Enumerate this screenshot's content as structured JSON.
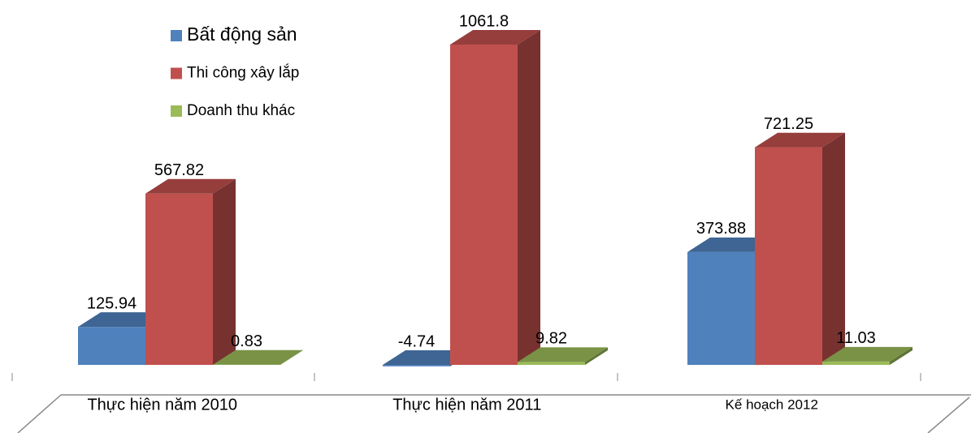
{
  "chart_data": {
    "type": "bar3d",
    "categories": [
      "Thực hiện năm 2010",
      "Thực hiện năm 2011",
      "Kế hoạch 2012"
    ],
    "series": [
      {
        "name": "Bất động sản",
        "color": "#4f81bd",
        "values": [
          125.94,
          -4.74,
          373.88
        ]
      },
      {
        "name": "Thi công xây lắp",
        "color": "#c0504d",
        "values": [
          567.82,
          1061.8,
          721.25
        ]
      },
      {
        "name": "Doanh thu khác",
        "color": "#9bbb59",
        "values": [
          0.83,
          9.82,
          11.03
        ]
      }
    ],
    "legend": "top-left"
  }
}
